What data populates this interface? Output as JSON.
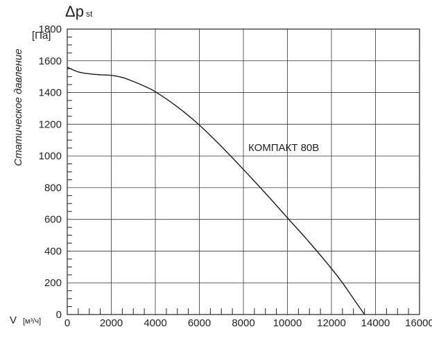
{
  "chart_data": {
    "type": "line",
    "title": "",
    "ylabel": "Статическое давление",
    "ysymbol_main": "Δp",
    "ysymbol_sub": "st",
    "yunit": "[Па]",
    "xsymbol": "V",
    "xunit": "[м³/ч]",
    "xlim": [
      0,
      16000
    ],
    "ylim": [
      0,
      1800
    ],
    "xticks": [
      0,
      2000,
      4000,
      6000,
      8000,
      10000,
      12000,
      14000,
      16000
    ],
    "yticks": [
      0,
      200,
      400,
      600,
      800,
      1000,
      1200,
      1400,
      1600,
      1800
    ],
    "xtick_labels": [
      "0",
      "2000",
      "4000",
      "6000",
      "8000",
      "10000",
      "12000",
      "14000",
      "16000"
    ],
    "ytick_labels": [
      "0",
      "200",
      "400",
      "600",
      "800",
      "1000",
      "1200",
      "1400",
      "1600",
      "1800"
    ],
    "grid": true,
    "annotation": "КОМПАКТ 80В",
    "series": [
      {
        "name": "КОМПАКТ 80В",
        "color": "#1a1a1a",
        "x": [
          0,
          500,
          1000,
          1500,
          2000,
          2500,
          3000,
          3500,
          4000,
          5000,
          6000,
          7000,
          8000,
          9000,
          10000,
          11000,
          12000,
          12500,
          13000,
          13500
        ],
        "y": [
          1560,
          1530,
          1518,
          1512,
          1508,
          1495,
          1470,
          1440,
          1405,
          1310,
          1195,
          1060,
          915,
          765,
          610,
          455,
          290,
          200,
          100,
          0
        ]
      }
    ]
  }
}
